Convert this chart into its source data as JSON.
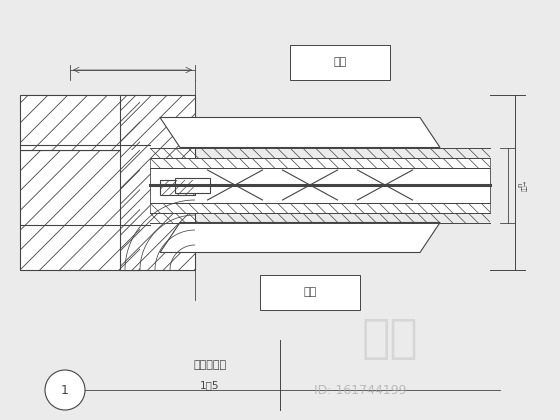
{
  "bg_color": "#ebebeb",
  "line_color": "#444444",
  "title_text": "门套大样图",
  "scale_text": "1：5",
  "id_text": "ID: 161744199",
  "label_outer": "厂外",
  "label_inner": "厂内",
  "watermark": "知末",
  "circle_number": "1"
}
